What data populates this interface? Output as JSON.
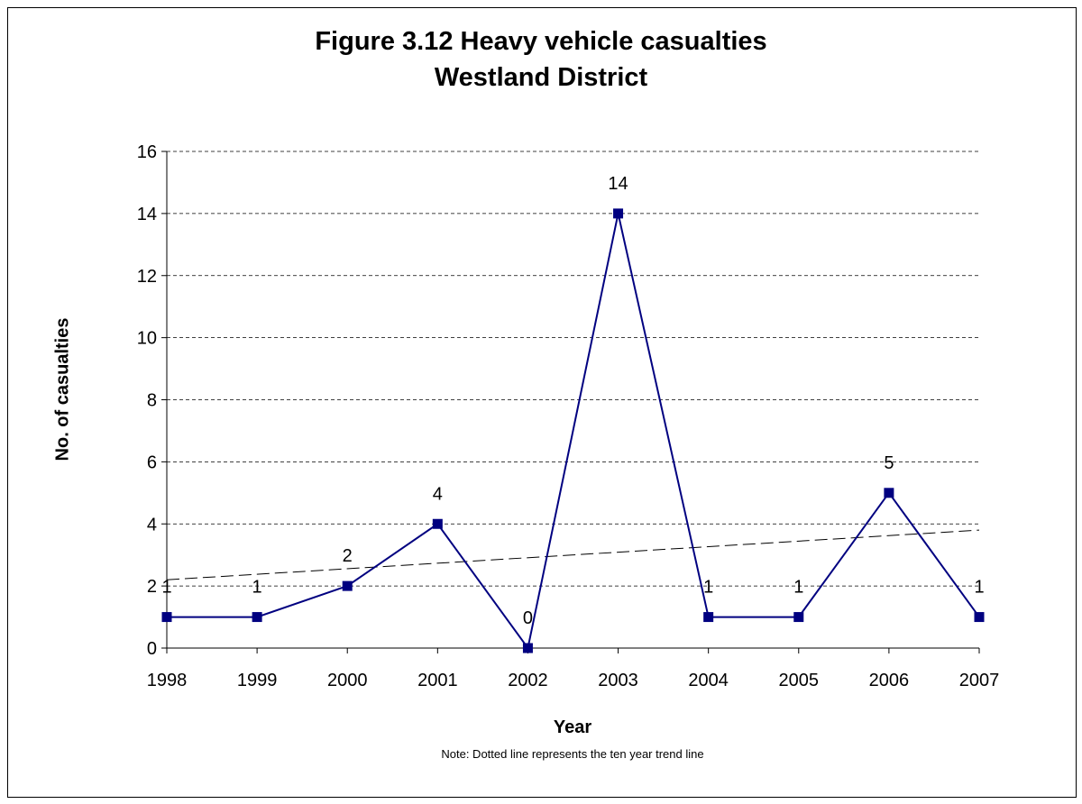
{
  "chart_data": {
    "type": "line",
    "title": "Figure 3.12 Heavy vehicle casualties",
    "subtitle": "Westland District",
    "xlabel": "Year",
    "ylabel": "No. of casualties",
    "note": "Note: Dotted line represents the ten year trend line",
    "categories": [
      "1998",
      "1999",
      "2000",
      "2001",
      "2002",
      "2003",
      "2004",
      "2005",
      "2006",
      "2007"
    ],
    "series": [
      {
        "values": [
          1,
          1,
          2,
          4,
          0,
          14,
          1,
          1,
          5,
          1
        ]
      }
    ],
    "trendline": {
      "style": "dashed",
      "start": 2.2,
      "end": 3.8
    },
    "ylim": [
      0,
      16
    ],
    "yticks": [
      0,
      2,
      4,
      6,
      8,
      10,
      12,
      14,
      16
    ],
    "grid": "horizontal dashed",
    "data_labels": true,
    "colors": {
      "series": "#000080",
      "trend": "#000000",
      "grid": "#000000"
    }
  }
}
